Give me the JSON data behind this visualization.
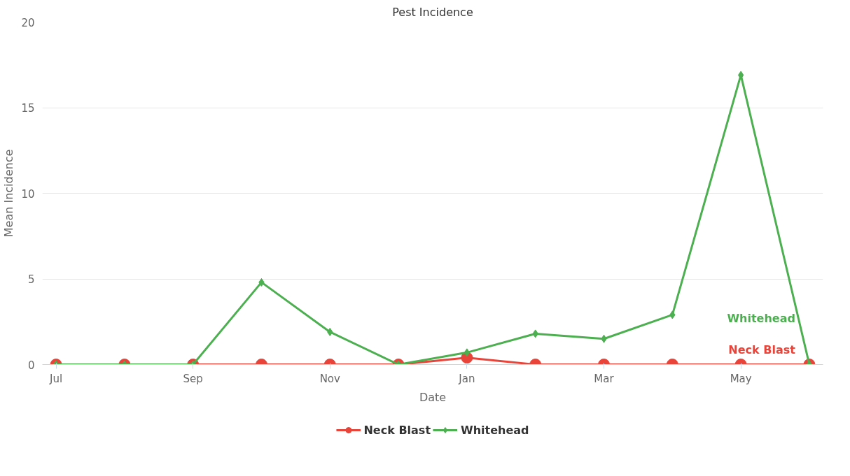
{
  "chart_data": {
    "type": "line",
    "title": "Pest Incidence",
    "xlabel": "Date",
    "ylabel": "Mean Incidence",
    "categories": [
      "Jul",
      null,
      "Sep",
      null,
      "Nov",
      null,
      "Jan",
      null,
      "Mar",
      null,
      "May",
      null
    ],
    "series": [
      {
        "name": "Neck Blast",
        "color": "#e8443a",
        "marker": "circle",
        "values": [
          0,
          0,
          0,
          0,
          0,
          0,
          0.4,
          0,
          0,
          0,
          0,
          0
        ]
      },
      {
        "name": "Whitehead",
        "color": "#4caf50",
        "marker": "diamond",
        "values": [
          0,
          0,
          0,
          4.8,
          1.9,
          0,
          0.7,
          1.8,
          1.5,
          2.9,
          16.9,
          0
        ]
      }
    ],
    "ylim": [
      0,
      20
    ],
    "yticks": [
      0,
      5,
      10,
      15,
      20
    ],
    "grid": "y",
    "legend": "bottom"
  }
}
